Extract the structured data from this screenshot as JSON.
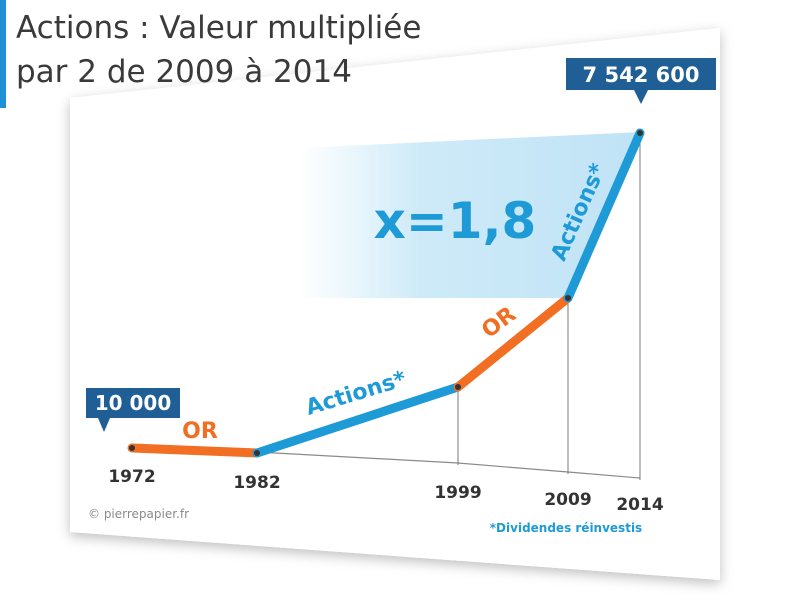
{
  "title": {
    "line1": "Actions : Valeur multipliée",
    "line2": "par 2 de 2009 à 2014"
  },
  "credit": "© pierrepapier.fr",
  "footnote": "*Dividendes réinvestis",
  "multiplier_label": "x=1,8",
  "colors": {
    "actions": "#1e9ad6",
    "or": "#f26e22",
    "callout": "#1f5f96",
    "title_accent": "#1e90d6"
  },
  "chart_data": {
    "type": "line",
    "title": "Actions : Valeur multipliée par 2 de 2009 à 2014",
    "x": [
      1972,
      1982,
      1999,
      2009,
      2014
    ],
    "tick_labels": [
      "1972",
      "1982",
      "1999",
      "2009",
      "2014"
    ],
    "points": [
      {
        "year": 1972,
        "value": 10000
      },
      {
        "year": 1982,
        "value": 10000
      },
      {
        "year": 1999,
        "value": 900000
      },
      {
        "year": 2009,
        "value": 4200000
      },
      {
        "year": 2014,
        "value": 7542600
      }
    ],
    "segments": [
      {
        "from": 1972,
        "to": 1982,
        "asset": "OR",
        "label": "OR"
      },
      {
        "from": 1982,
        "to": 1999,
        "asset": "Actions",
        "label": "Actions*"
      },
      {
        "from": 1999,
        "to": 2009,
        "asset": "OR",
        "label": "OR"
      },
      {
        "from": 2009,
        "to": 2014,
        "asset": "Actions",
        "label": "Actions*"
      }
    ],
    "start_label": "10 000",
    "end_label": "7 542 600",
    "grid": false,
    "legend": "none"
  }
}
